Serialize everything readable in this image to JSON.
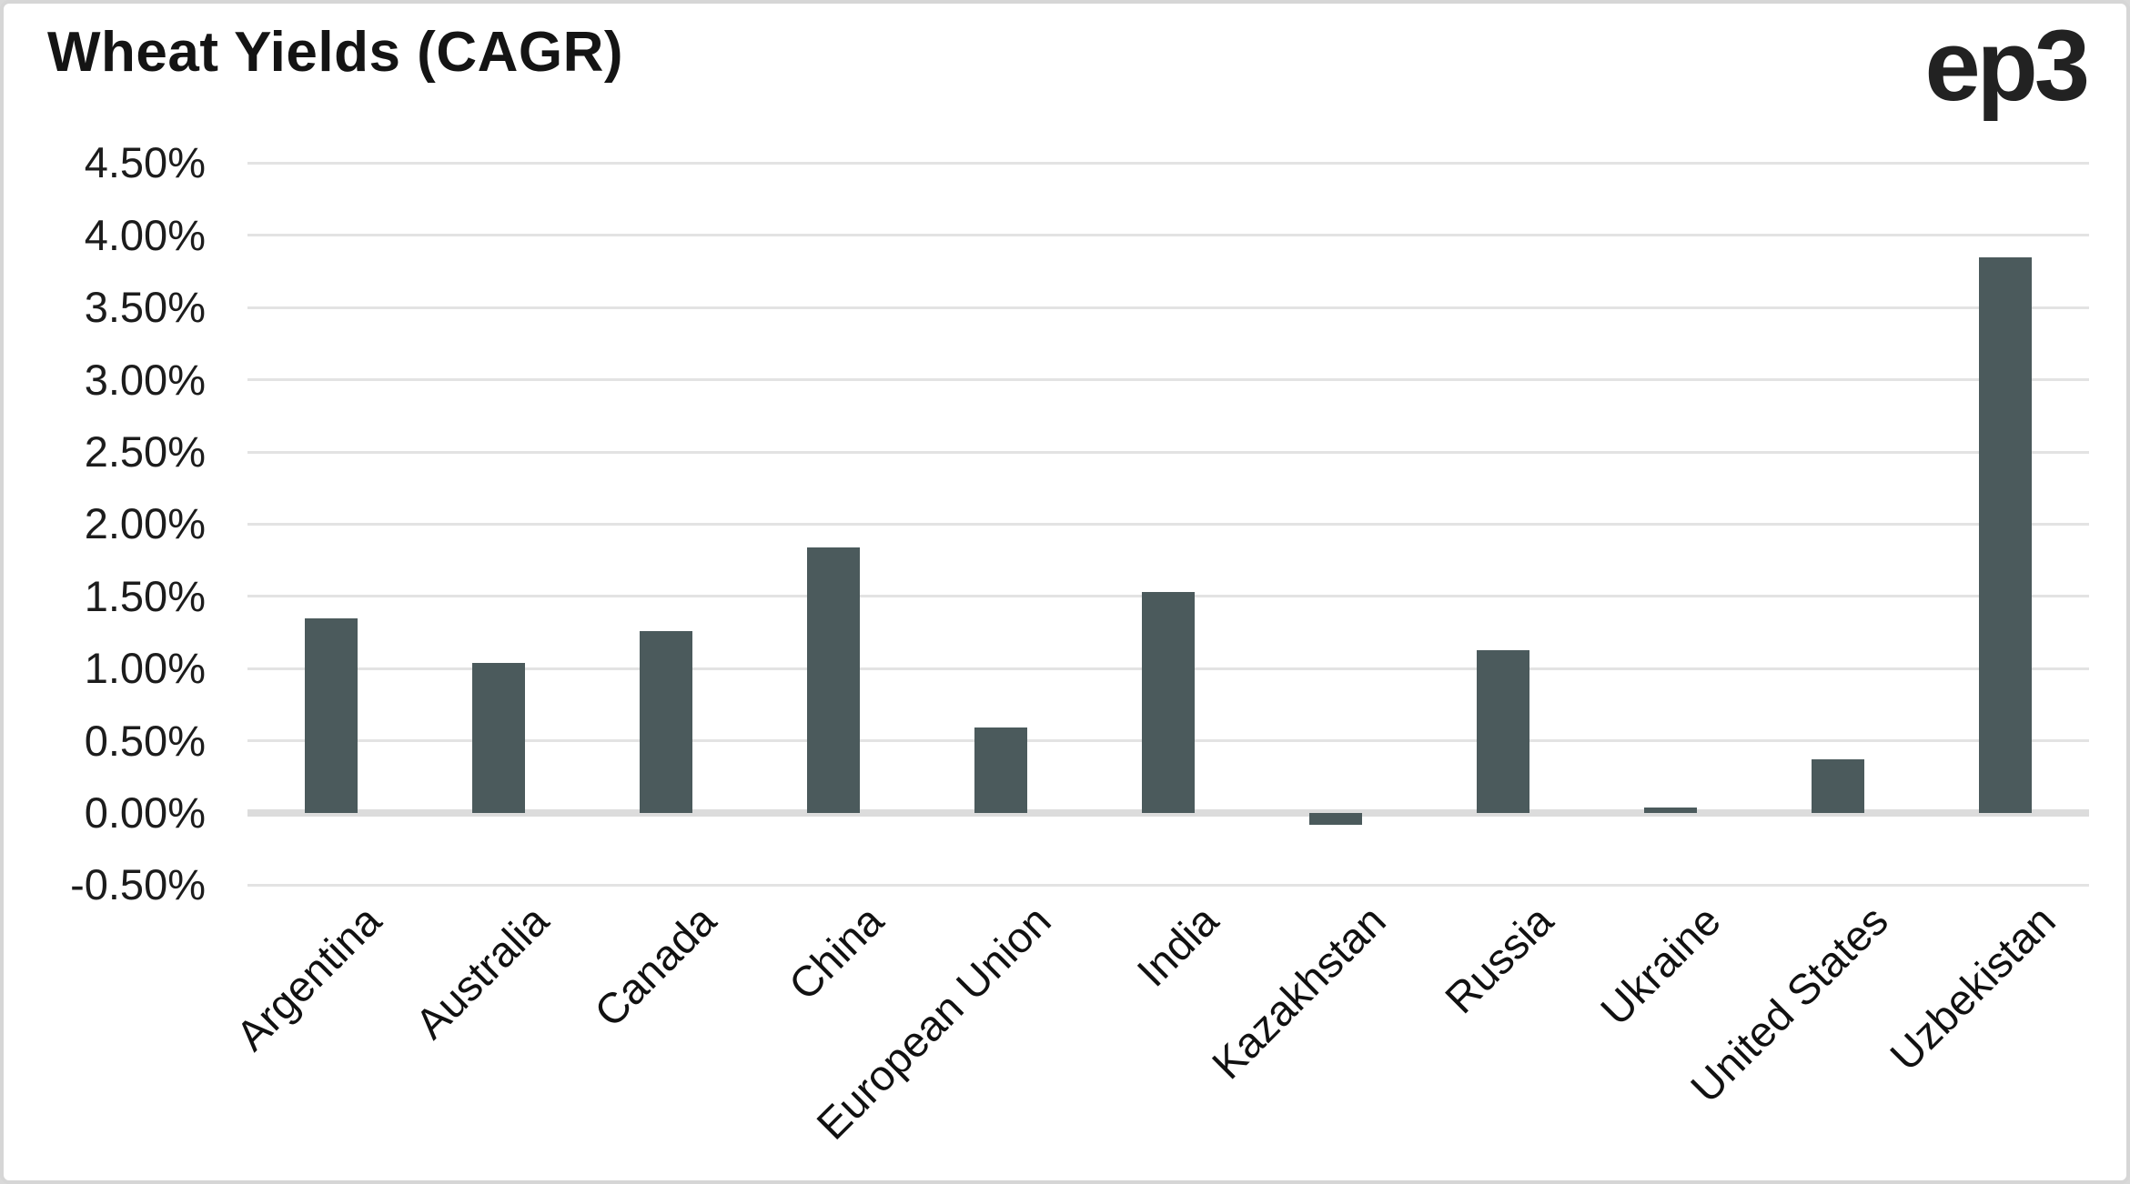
{
  "header": {
    "title": "Wheat Yields (CAGR)",
    "logo": "ep3"
  },
  "chart_data": {
    "type": "bar",
    "title": "Wheat Yields (CAGR)",
    "xlabel": "",
    "ylabel": "",
    "categories": [
      "Argentina",
      "Australia",
      "Canada",
      "China",
      "European Union",
      "India",
      "Kazakhstan",
      "Russia",
      "Ukraine",
      "United States",
      "Uzbekistan"
    ],
    "values": [
      1.35,
      1.04,
      1.26,
      1.84,
      0.59,
      1.53,
      -0.08,
      1.13,
      0.04,
      0.37,
      3.85
    ],
    "ylim": [
      -0.5,
      4.5
    ],
    "ytick_step": 0.5,
    "ytick_labels": [
      "4.50%",
      "4.00%",
      "3.50%",
      "3.00%",
      "2.50%",
      "2.00%",
      "1.50%",
      "1.00%",
      "0.50%",
      "0.00%",
      "-0.50%"
    ],
    "grid": "horizontal",
    "legend_position": "none",
    "colors": {
      "bar": "#4b5a5c",
      "gridline": "#e3e3e3",
      "zero_line": "#dcdcdc",
      "card_border": "#d6d6d6",
      "title_text": "#141414",
      "axis_text": "#1c1c1c",
      "logo_text": "#222222"
    }
  }
}
